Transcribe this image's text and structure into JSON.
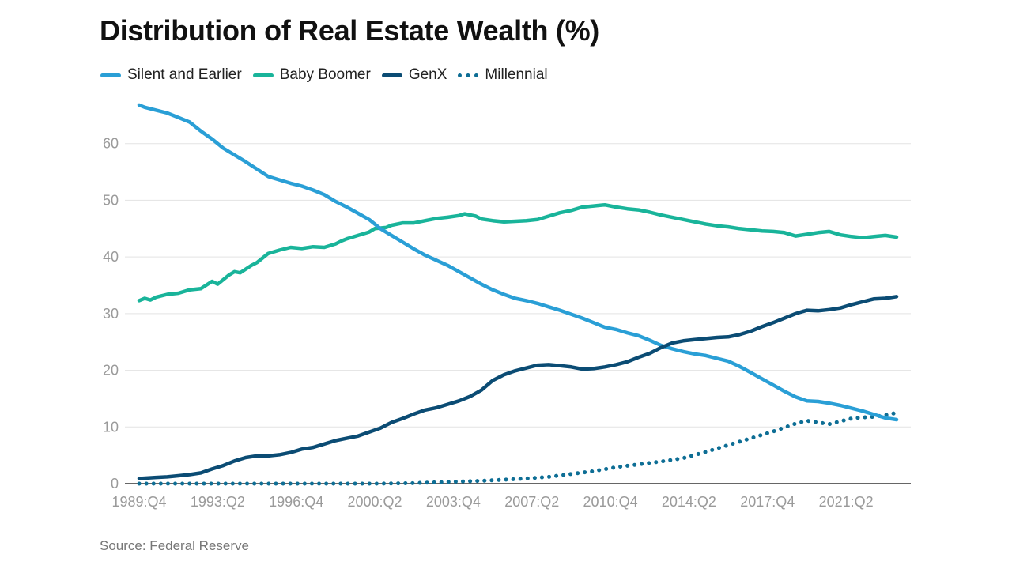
{
  "title": "Distribution of Real Estate Wealth (%)",
  "source": "Source: Federal Reserve",
  "legend": [
    {
      "label": "Silent and Earlier",
      "color": "#2a9fd6",
      "style": "solid"
    },
    {
      "label": "Baby Boomer",
      "color": "#19b49a",
      "style": "solid"
    },
    {
      "label": "GenX",
      "color": "#0b4c74",
      "style": "solid"
    },
    {
      "label": "Millennial",
      "color": "#0e6e95",
      "style": "dotted"
    }
  ],
  "chart_data": {
    "type": "line",
    "title": "Distribution of Real Estate Wealth (%)",
    "xlabel": "",
    "ylabel": "",
    "x_tick_labels": [
      "1989:Q4",
      "1993:Q2",
      "1996:Q4",
      "2000:Q2",
      "2003:Q4",
      "2007:Q2",
      "2010:Q4",
      "2014:Q2",
      "2017:Q4",
      "2021:Q2"
    ],
    "x_ticks": [
      1989.75,
      1993.25,
      1996.75,
      2000.25,
      2003.75,
      2007.25,
      2010.75,
      2014.25,
      2017.75,
      2021.25
    ],
    "xlim": [
      1989.75,
      2023.5
    ],
    "y_ticks": [
      0,
      10,
      20,
      30,
      40,
      50,
      60
    ],
    "ylim": [
      0,
      70
    ],
    "grid": true,
    "legend_position": "top-left",
    "series": [
      {
        "name": "Silent and Earlier",
        "color": "#2a9fd6",
        "style": "solid",
        "points": [
          [
            1989.75,
            66.8
          ],
          [
            1990,
            66.4
          ],
          [
            1990.5,
            65.9
          ],
          [
            1991,
            65.4
          ],
          [
            1991.5,
            64.6
          ],
          [
            1992,
            63.8
          ],
          [
            1992.5,
            62.2
          ],
          [
            1993,
            60.8
          ],
          [
            1993.5,
            59.2
          ],
          [
            1994,
            58.0
          ],
          [
            1994.5,
            56.8
          ],
          [
            1995,
            55.5
          ],
          [
            1995.5,
            54.2
          ],
          [
            1996,
            53.6
          ],
          [
            1996.5,
            53.0
          ],
          [
            1997,
            52.5
          ],
          [
            1997.5,
            51.8
          ],
          [
            1998,
            51.0
          ],
          [
            1998.5,
            49.8
          ],
          [
            1999,
            48.8
          ],
          [
            1999.5,
            47.7
          ],
          [
            2000,
            46.6
          ],
          [
            2000.5,
            45.0
          ],
          [
            2001,
            43.8
          ],
          [
            2001.5,
            42.6
          ],
          [
            2002,
            41.4
          ],
          [
            2002.5,
            40.3
          ],
          [
            2003,
            39.4
          ],
          [
            2003.5,
            38.5
          ],
          [
            2004,
            37.4
          ],
          [
            2004.5,
            36.3
          ],
          [
            2005,
            35.2
          ],
          [
            2005.5,
            34.2
          ],
          [
            2006,
            33.4
          ],
          [
            2006.5,
            32.7
          ],
          [
            2007,
            32.3
          ],
          [
            2007.5,
            31.8
          ],
          [
            2008,
            31.2
          ],
          [
            2008.5,
            30.6
          ],
          [
            2009,
            29.9
          ],
          [
            2009.5,
            29.2
          ],
          [
            2010,
            28.4
          ],
          [
            2010.5,
            27.6
          ],
          [
            2011,
            27.2
          ],
          [
            2011.5,
            26.6
          ],
          [
            2012,
            26.1
          ],
          [
            2012.5,
            25.3
          ],
          [
            2013,
            24.4
          ],
          [
            2013.5,
            23.8
          ],
          [
            2014,
            23.3
          ],
          [
            2014.5,
            22.9
          ],
          [
            2015,
            22.6
          ],
          [
            2015.5,
            22.1
          ],
          [
            2016,
            21.6
          ],
          [
            2016.5,
            20.7
          ],
          [
            2017,
            19.6
          ],
          [
            2017.5,
            18.5
          ],
          [
            2018,
            17.4
          ],
          [
            2018.5,
            16.3
          ],
          [
            2019,
            15.3
          ],
          [
            2019.5,
            14.6
          ],
          [
            2020,
            14.5
          ],
          [
            2020.5,
            14.2
          ],
          [
            2021,
            13.8
          ],
          [
            2021.5,
            13.3
          ],
          [
            2022,
            12.8
          ],
          [
            2022.5,
            12.2
          ],
          [
            2023,
            11.6
          ],
          [
            2023.5,
            11.3
          ]
        ]
      },
      {
        "name": "Baby Boomer",
        "color": "#19b49a",
        "style": "solid",
        "points": [
          [
            1989.75,
            32.3
          ],
          [
            1990,
            32.7
          ],
          [
            1990.25,
            32.4
          ],
          [
            1990.5,
            32.9
          ],
          [
            1991,
            33.4
          ],
          [
            1991.5,
            33.6
          ],
          [
            1992,
            34.2
          ],
          [
            1992.5,
            34.4
          ],
          [
            1993,
            35.7
          ],
          [
            1993.25,
            35.2
          ],
          [
            1993.75,
            36.8
          ],
          [
            1994,
            37.4
          ],
          [
            1994.25,
            37.2
          ],
          [
            1994.75,
            38.5
          ],
          [
            1995,
            39.0
          ],
          [
            1995.5,
            40.6
          ],
          [
            1996,
            41.2
          ],
          [
            1996.5,
            41.7
          ],
          [
            1997,
            41.5
          ],
          [
            1997.5,
            41.8
          ],
          [
            1998,
            41.7
          ],
          [
            1998.5,
            42.3
          ],
          [
            1998.75,
            42.8
          ],
          [
            1999,
            43.2
          ],
          [
            1999.5,
            43.8
          ],
          [
            2000,
            44.4
          ],
          [
            2000.25,
            45.0
          ],
          [
            2000.75,
            45.2
          ],
          [
            2001,
            45.6
          ],
          [
            2001.5,
            46.0
          ],
          [
            2002,
            46.0
          ],
          [
            2002.5,
            46.4
          ],
          [
            2003,
            46.8
          ],
          [
            2003.5,
            47.0
          ],
          [
            2004,
            47.3
          ],
          [
            2004.25,
            47.6
          ],
          [
            2004.75,
            47.2
          ],
          [
            2005,
            46.7
          ],
          [
            2005.5,
            46.4
          ],
          [
            2006,
            46.2
          ],
          [
            2006.5,
            46.3
          ],
          [
            2007,
            46.4
          ],
          [
            2007.5,
            46.6
          ],
          [
            2008,
            47.2
          ],
          [
            2008.5,
            47.8
          ],
          [
            2009,
            48.2
          ],
          [
            2009.5,
            48.8
          ],
          [
            2010,
            49.0
          ],
          [
            2010.5,
            49.2
          ],
          [
            2011,
            48.8
          ],
          [
            2011.5,
            48.5
          ],
          [
            2012,
            48.3
          ],
          [
            2012.5,
            47.9
          ],
          [
            2013,
            47.4
          ],
          [
            2013.5,
            47.0
          ],
          [
            2014,
            46.6
          ],
          [
            2014.5,
            46.2
          ],
          [
            2015,
            45.8
          ],
          [
            2015.5,
            45.5
          ],
          [
            2016,
            45.3
          ],
          [
            2016.5,
            45.0
          ],
          [
            2017,
            44.8
          ],
          [
            2017.5,
            44.6
          ],
          [
            2018,
            44.5
          ],
          [
            2018.5,
            44.3
          ],
          [
            2019,
            43.7
          ],
          [
            2019.5,
            44.0
          ],
          [
            2020,
            44.3
          ],
          [
            2020.5,
            44.5
          ],
          [
            2021,
            43.9
          ],
          [
            2021.5,
            43.6
          ],
          [
            2022,
            43.4
          ],
          [
            2022.5,
            43.6
          ],
          [
            2023,
            43.8
          ],
          [
            2023.5,
            43.5
          ]
        ]
      },
      {
        "name": "GenX",
        "color": "#0b4c74",
        "style": "solid",
        "points": [
          [
            1989.75,
            0.9
          ],
          [
            1990.5,
            1.1
          ],
          [
            1991,
            1.2
          ],
          [
            1991.5,
            1.4
          ],
          [
            1992,
            1.6
          ],
          [
            1992.5,
            1.9
          ],
          [
            1993,
            2.6
          ],
          [
            1993.5,
            3.2
          ],
          [
            1994,
            4.0
          ],
          [
            1994.5,
            4.6
          ],
          [
            1995,
            4.9
          ],
          [
            1995.5,
            4.9
          ],
          [
            1996,
            5.1
          ],
          [
            1996.5,
            5.5
          ],
          [
            1997,
            6.1
          ],
          [
            1997.5,
            6.4
          ],
          [
            1998,
            7.0
          ],
          [
            1998.5,
            7.6
          ],
          [
            1999,
            8.0
          ],
          [
            1999.5,
            8.4
          ],
          [
            2000,
            9.1
          ],
          [
            2000.5,
            9.8
          ],
          [
            2001,
            10.8
          ],
          [
            2001.5,
            11.5
          ],
          [
            2002,
            12.3
          ],
          [
            2002.5,
            13.0
          ],
          [
            2003,
            13.4
          ],
          [
            2003.5,
            14.0
          ],
          [
            2004,
            14.6
          ],
          [
            2004.5,
            15.4
          ],
          [
            2005,
            16.5
          ],
          [
            2005.5,
            18.2
          ],
          [
            2006,
            19.2
          ],
          [
            2006.5,
            19.9
          ],
          [
            2007,
            20.4
          ],
          [
            2007.5,
            20.9
          ],
          [
            2008,
            21.0
          ],
          [
            2008.5,
            20.8
          ],
          [
            2009,
            20.6
          ],
          [
            2009.5,
            20.2
          ],
          [
            2010,
            20.3
          ],
          [
            2010.5,
            20.6
          ],
          [
            2011,
            21.0
          ],
          [
            2011.5,
            21.5
          ],
          [
            2012,
            22.3
          ],
          [
            2012.5,
            23.0
          ],
          [
            2013,
            24.0
          ],
          [
            2013.5,
            24.8
          ],
          [
            2014,
            25.2
          ],
          [
            2014.5,
            25.4
          ],
          [
            2015,
            25.6
          ],
          [
            2015.5,
            25.8
          ],
          [
            2016,
            25.9
          ],
          [
            2016.5,
            26.3
          ],
          [
            2017,
            26.9
          ],
          [
            2017.5,
            27.7
          ],
          [
            2018,
            28.4
          ],
          [
            2018.5,
            29.2
          ],
          [
            2019,
            30.0
          ],
          [
            2019.5,
            30.6
          ],
          [
            2020,
            30.5
          ],
          [
            2020.5,
            30.7
          ],
          [
            2021,
            31.0
          ],
          [
            2021.5,
            31.6
          ],
          [
            2022,
            32.1
          ],
          [
            2022.5,
            32.6
          ],
          [
            2023,
            32.7
          ],
          [
            2023.5,
            33.0
          ]
        ]
      },
      {
        "name": "Millennial",
        "color": "#0e6e95",
        "style": "dotted",
        "points": [
          [
            1989.75,
            0
          ],
          [
            2000.5,
            0
          ],
          [
            2002,
            0.1
          ],
          [
            2003.5,
            0.3
          ],
          [
            2005,
            0.5
          ],
          [
            2006,
            0.7
          ],
          [
            2007,
            0.9
          ],
          [
            2008,
            1.2
          ],
          [
            2009,
            1.7
          ],
          [
            2010,
            2.2
          ],
          [
            2011,
            2.9
          ],
          [
            2012,
            3.4
          ],
          [
            2013,
            3.9
          ],
          [
            2014,
            4.5
          ],
          [
            2015,
            5.6
          ],
          [
            2016,
            6.8
          ],
          [
            2017,
            8.0
          ],
          [
            2018,
            9.2
          ],
          [
            2019,
            10.6
          ],
          [
            2019.5,
            11.1
          ],
          [
            2020,
            10.8
          ],
          [
            2020.5,
            10.5
          ],
          [
            2021,
            11.0
          ],
          [
            2021.5,
            11.5
          ],
          [
            2022,
            11.7
          ],
          [
            2022.5,
            11.8
          ],
          [
            2023,
            12.1
          ],
          [
            2023.5,
            12.5
          ]
        ]
      }
    ]
  }
}
